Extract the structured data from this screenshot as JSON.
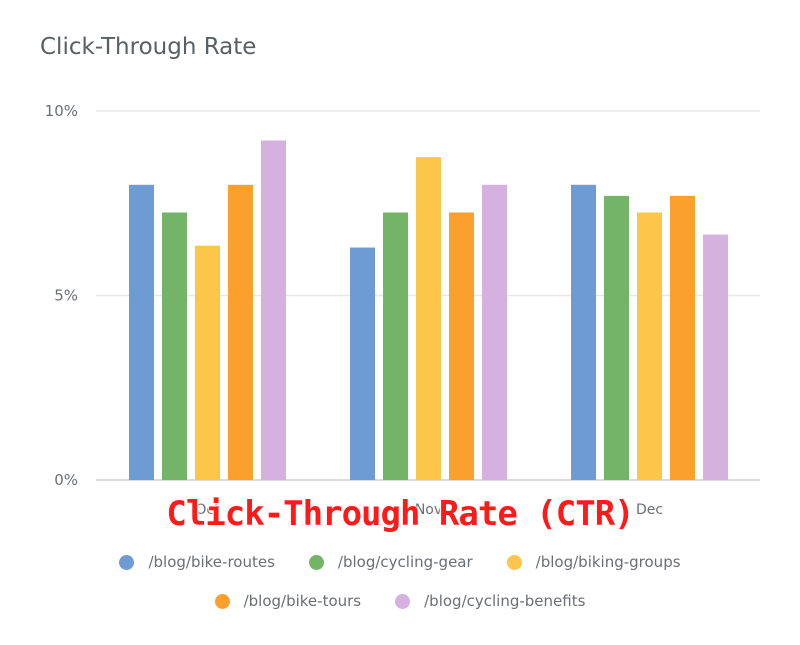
{
  "chart_data": {
    "type": "bar",
    "title": "Click-Through Rate",
    "categories": [
      "Oct",
      "Nov",
      "Dec"
    ],
    "y_ticks": [
      "0%",
      "5%",
      "10%"
    ],
    "ylim": [
      0,
      10
    ],
    "y_unit": "%",
    "grid": true,
    "legend_position": "bottom",
    "series": [
      {
        "name": "/blog/bike-routes",
        "color": "#6f9bd4",
        "values": [
          8.0,
          6.3,
          8.0
        ]
      },
      {
        "name": "/blog/cycling-gear",
        "color": "#74b466",
        "values": [
          7.25,
          7.25,
          7.7
        ]
      },
      {
        "name": "/blog/biking-groups",
        "color": "#fcc64a",
        "values": [
          6.35,
          8.75,
          7.25
        ]
      },
      {
        "name": "/blog/bike-tours",
        "color": "#fba02c",
        "values": [
          8.0,
          7.25,
          7.7
        ]
      },
      {
        "name": "/blog/cycling-benefits",
        "color": "#d5b1e0",
        "values": [
          9.2,
          8.0,
          6.65
        ]
      }
    ]
  },
  "overlay_text": "Click-Through Rate (CTR)"
}
